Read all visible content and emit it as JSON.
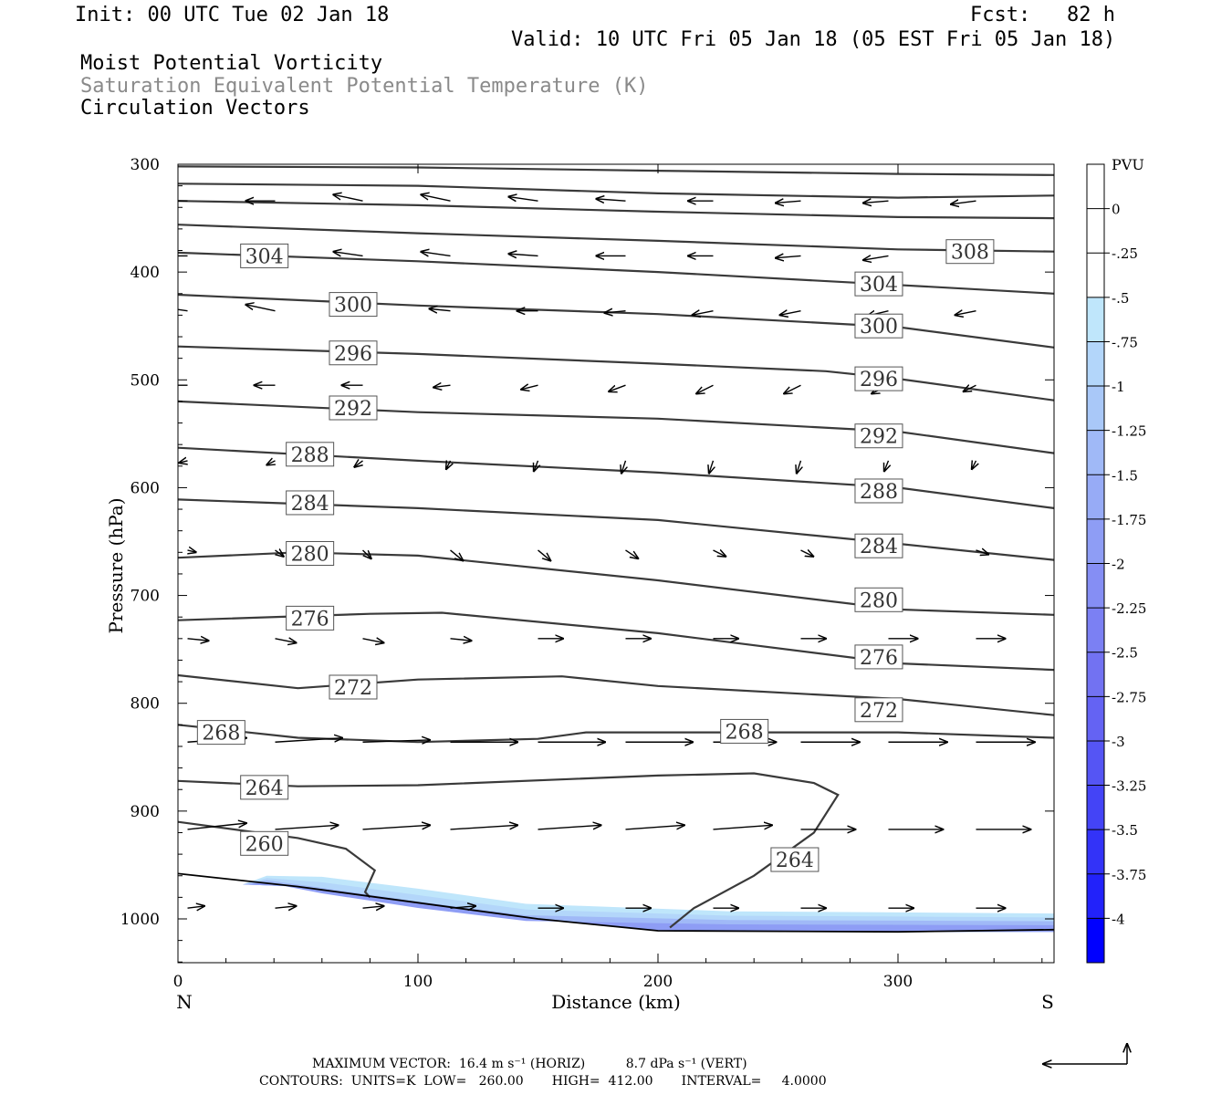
{
  "header": {
    "init": "Init: 00 UTC Tue 02 Jan 18",
    "fcst": "Fcst:   82 h",
    "valid": "Valid: 10 UTC Fri 05 Jan 18 (05 EST Fri 05 Jan 18)",
    "field1": "Moist Potential Vorticity",
    "field2": "Saturation Equivalent Potential Temperature (K)",
    "field3": "Circulation Vectors"
  },
  "footer": {
    "max_vector": "MAXIMUM VECTOR:  16.4 m s⁻¹ (HORIZ)          8.7 dPa s⁻¹ (VERT)",
    "contours": "CONTOURS:  UNITS=K  LOW=   260.00       HIGH=  412.00       INTERVAL=     4.0000"
  },
  "colors": {
    "contour": "#3a3a3a",
    "pvu_scale": [
      "#ffffff",
      "#ffffff",
      "#bfe6fb",
      "#b3d6fa",
      "#a9c8f8",
      "#a0b9f7",
      "#97abf6",
      "#8e9df5",
      "#858ef4",
      "#7b80f3",
      "#7272f2",
      "#6463f3",
      "#5555f4",
      "#4444f6",
      "#3333f8",
      "#2222fa",
      "#0000ff"
    ]
  },
  "chart_data": {
    "type": "cross-section",
    "xlabel": "Distance (km)",
    "ylabel": "Pressure (hPa)",
    "xlim": [
      0,
      365
    ],
    "ylim": [
      300,
      1040
    ],
    "y_scale": "linear",
    "x_ticks": [
      0,
      100,
      200,
      300
    ],
    "y_ticks": [
      300,
      400,
      500,
      600,
      700,
      800,
      900,
      1000
    ],
    "x_end_labels": {
      "left": "N",
      "right": "S"
    },
    "legend": {
      "title": "PVU",
      "labels": [
        "0",
        "-.25",
        "-.5",
        "-.75",
        "-1",
        "-1.25",
        "-1.5",
        "-1.75",
        "-2",
        "-2.25",
        "-2.5",
        "-2.75",
        "-3",
        "-3.25",
        "-3.5",
        "-3.75",
        "-4"
      ]
    },
    "contours": [
      {
        "level": "",
        "points": [
          [
            0,
            302
          ],
          [
            100,
            303
          ],
          [
            200,
            306
          ],
          [
            300,
            309
          ],
          [
            365,
            310
          ]
        ]
      },
      {
        "level": "",
        "points": [
          [
            0,
            318
          ],
          [
            100,
            320
          ],
          [
            200,
            327
          ],
          [
            300,
            331
          ],
          [
            365,
            329
          ]
        ]
      },
      {
        "level": "",
        "points": [
          [
            0,
            334
          ],
          [
            100,
            338
          ],
          [
            200,
            344
          ],
          [
            300,
            349
          ],
          [
            365,
            350
          ]
        ]
      },
      {
        "level": "",
        "points": [
          [
            0,
            356
          ],
          [
            100,
            364
          ],
          [
            200,
            371
          ],
          [
            300,
            379
          ],
          [
            365,
            381
          ]
        ]
      },
      {
        "level": "304",
        "label_at": [
          36,
          385
        ],
        "points": [
          [
            0,
            382
          ],
          [
            100,
            390
          ],
          [
            200,
            400
          ],
          [
            300,
            412
          ],
          [
            365,
            420
          ]
        ]
      },
      {
        "level": "300",
        "label_at": [
          73,
          430
        ],
        "points": [
          [
            0,
            421
          ],
          [
            100,
            431
          ],
          [
            200,
            439
          ],
          [
            300,
            451
          ],
          [
            365,
            470
          ]
        ]
      },
      {
        "level": "296",
        "label_at": [
          73,
          475
        ],
        "points": [
          [
            0,
            469
          ],
          [
            100,
            476
          ],
          [
            200,
            485
          ],
          [
            270,
            492
          ],
          [
            300,
            499
          ],
          [
            365,
            519
          ]
        ]
      },
      {
        "level": "292",
        "label_at": [
          73,
          526
        ],
        "points": [
          [
            0,
            520
          ],
          [
            100,
            530
          ],
          [
            200,
            536
          ],
          [
            300,
            548
          ],
          [
            365,
            568
          ]
        ]
      },
      {
        "level": "288",
        "label_at": [
          55,
          569
        ],
        "points": [
          [
            0,
            563
          ],
          [
            100,
            575
          ],
          [
            200,
            586
          ],
          [
            300,
            600
          ],
          [
            365,
            619
          ]
        ]
      },
      {
        "level": "284",
        "label_at": [
          55,
          614
        ],
        "points": [
          [
            0,
            611
          ],
          [
            100,
            619
          ],
          [
            200,
            630
          ],
          [
            300,
            652
          ],
          [
            365,
            667
          ]
        ]
      },
      {
        "level": "280",
        "label_at": [
          55,
          661
        ],
        "points": [
          [
            0,
            665
          ],
          [
            50,
            660
          ],
          [
            100,
            663
          ],
          [
            200,
            686
          ],
          [
            300,
            713
          ],
          [
            365,
            718
          ]
        ]
      },
      {
        "level": "276",
        "label_at": [
          55,
          721
        ],
        "points": [
          [
            0,
            723
          ],
          [
            80,
            717
          ],
          [
            110,
            716
          ],
          [
            200,
            735
          ],
          [
            300,
            763
          ],
          [
            365,
            769
          ]
        ]
      },
      {
        "level": "272",
        "label_at": [
          73,
          785
        ],
        "points": [
          [
            0,
            774
          ],
          [
            50,
            786
          ],
          [
            100,
            778
          ],
          [
            160,
            775
          ],
          [
            200,
            784
          ],
          [
            300,
            796
          ],
          [
            365,
            811
          ]
        ]
      },
      {
        "level": "268",
        "label_at": [
          18,
          827
        ],
        "points": [
          [
            0,
            820
          ],
          [
            50,
            832
          ],
          [
            100,
            836
          ],
          [
            150,
            833
          ],
          [
            170,
            827
          ],
          [
            300,
            827
          ],
          [
            365,
            832
          ]
        ]
      },
      {
        "level": "264",
        "label_at": [
          36,
          878
        ],
        "points": [
          [
            0,
            872
          ],
          [
            50,
            877
          ],
          [
            100,
            876
          ],
          [
            200,
            867
          ],
          [
            240,
            865
          ],
          [
            265,
            874
          ],
          [
            275,
            885
          ],
          [
            265,
            920
          ],
          [
            240,
            960
          ],
          [
            215,
            990
          ],
          [
            205,
            1008
          ]
        ]
      },
      {
        "level": "260",
        "label_at": [
          36,
          930
        ],
        "points": [
          [
            0,
            910
          ],
          [
            50,
            925
          ],
          [
            70,
            935
          ],
          [
            82,
            955
          ],
          [
            78,
            975
          ],
          [
            80,
            980
          ]
        ]
      }
    ],
    "extra_contour_labels": [
      {
        "level": "308",
        "at": [
          330,
          381
        ]
      },
      {
        "level": "304",
        "at": [
          292,
          411
        ]
      },
      {
        "level": "300",
        "at": [
          292,
          450
        ]
      },
      {
        "level": "296",
        "at": [
          292,
          499
        ]
      },
      {
        "level": "292",
        "at": [
          292,
          552
        ]
      },
      {
        "level": "288",
        "at": [
          292,
          603
        ]
      },
      {
        "level": "284",
        "at": [
          292,
          654
        ]
      },
      {
        "level": "280",
        "at": [
          292,
          704
        ]
      },
      {
        "level": "276",
        "at": [
          292,
          757
        ]
      },
      {
        "level": "272",
        "at": [
          292,
          806
        ]
      },
      {
        "level": "268",
        "at": [
          236,
          826
        ]
      },
      {
        "level": "264",
        "at": [
          257,
          945
        ]
      }
    ],
    "surface": [
      [
        0,
        958
      ],
      [
        50,
        970
      ],
      [
        100,
        985
      ],
      [
        150,
        1000
      ],
      [
        200,
        1011
      ],
      [
        300,
        1012
      ],
      [
        365,
        1010
      ]
    ],
    "pv_shading": {
      "top": [
        [
          27,
          968
        ],
        [
          37,
          960
        ],
        [
          60,
          961
        ],
        [
          100,
          972
        ],
        [
          145,
          986
        ],
        [
          230,
          993
        ],
        [
          300,
          994
        ],
        [
          365,
          995
        ]
      ],
      "bottom": [
        [
          365,
          1012
        ],
        [
          300,
          1012
        ],
        [
          200,
          1011
        ],
        [
          150,
          1000
        ],
        [
          100,
          985
        ],
        [
          50,
          970
        ],
        [
          27,
          968
        ]
      ],
      "min_value": -1.75
    },
    "vectors": [
      {
        "row": 334,
        "u": [
          -7,
          -7,
          -7,
          -7,
          -7,
          -7,
          -6,
          -6,
          -6,
          -6
        ],
        "w": [
          0,
          0,
          -1.5,
          -1.5,
          -1,
          -0.5,
          0,
          0.5,
          0.5,
          0.8
        ]
      },
      {
        "row": 385,
        "u": [
          -7,
          -7,
          -7,
          -7,
          -7,
          -7,
          -6,
          -6,
          -6,
          -6
        ],
        "w": [
          0,
          -1,
          -1,
          -1,
          -0.5,
          0,
          0,
          0.5,
          1,
          0.8
        ]
      },
      {
        "row": 436,
        "u": [
          -7,
          -7,
          -5,
          -5,
          -5,
          -5,
          -5,
          -5,
          -5,
          -5
        ],
        "w": [
          -1,
          -1.5,
          -1,
          -0.5,
          0,
          0.5,
          1,
          1,
          1.2,
          1
        ]
      },
      {
        "row": 505,
        "u": [
          -5,
          -5,
          -5,
          -4,
          -4,
          -4,
          -4,
          -4,
          -4,
          -3
        ],
        "w": [
          0,
          0,
          0,
          0.5,
          1,
          1.5,
          2,
          2,
          2,
          1.5
        ]
      },
      {
        "row": 575,
        "u": [
          -2,
          -2,
          -2,
          -1,
          -1,
          -1,
          -1,
          -1,
          -1,
          -1
        ],
        "w": [
          0.5,
          1,
          1.5,
          2,
          2.5,
          3,
          3,
          3,
          2.5,
          2
        ]
      },
      {
        "row": 658,
        "u": [
          2,
          2,
          2,
          3,
          3,
          3,
          3,
          3,
          3,
          3
        ],
        "w": [
          0.5,
          1.5,
          2,
          2.5,
          2.5,
          2,
          1.5,
          1.5,
          1,
          1
        ]
      },
      {
        "row": 740,
        "u": [
          5,
          5,
          5,
          5,
          6,
          6,
          6,
          6,
          7,
          7
        ],
        "w": [
          0.5,
          1,
          1,
          0.5,
          0,
          0,
          0,
          0,
          0,
          0
        ]
      },
      {
        "row": 836,
        "u": [
          14,
          16,
          16,
          16,
          16,
          16,
          15,
          14,
          14,
          14
        ],
        "w": [
          -1,
          -1,
          -0.5,
          0,
          0,
          0,
          0,
          0,
          0,
          0
        ]
      },
      {
        "row": 917,
        "u": [
          14,
          15,
          16,
          16,
          15,
          14,
          14,
          13,
          13,
          13
        ],
        "w": [
          -1.5,
          -1,
          -1,
          -1,
          -1,
          -1,
          -1,
          0,
          0,
          0
        ]
      },
      {
        "row": 990,
        "u": [
          4,
          5,
          5,
          6,
          6,
          6,
          6,
          6,
          6,
          7
        ],
        "w": [
          -0.5,
          -0.5,
          -0.5,
          -0.5,
          0,
          0,
          0,
          0,
          0,
          0
        ]
      }
    ]
  }
}
